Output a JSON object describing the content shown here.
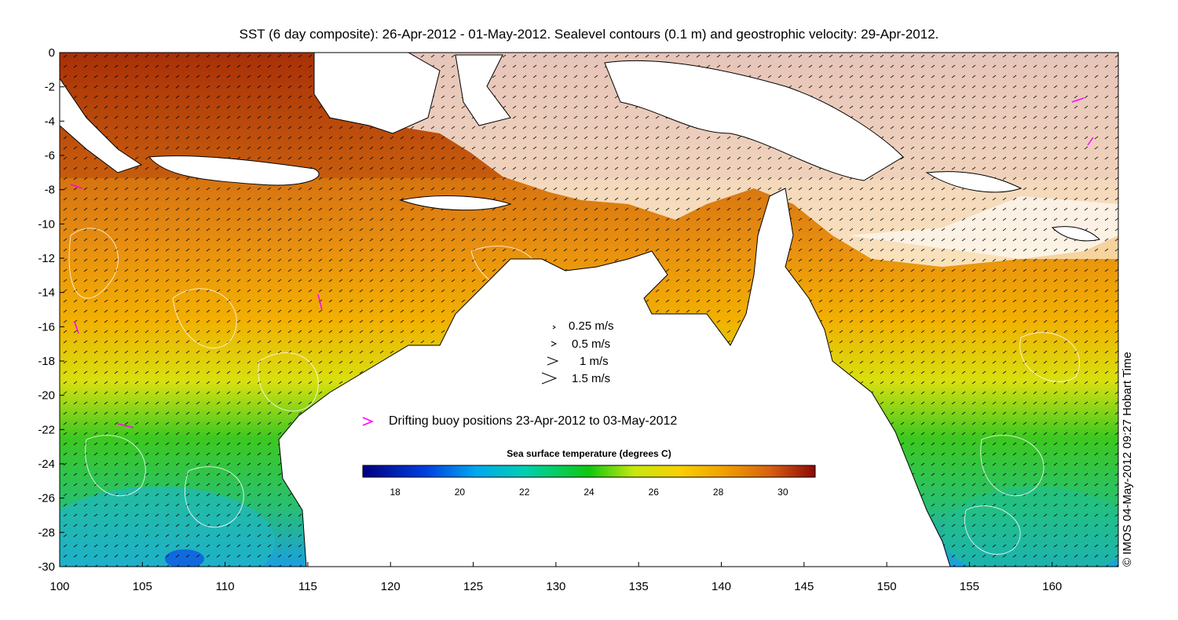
{
  "title": "SST (6 day composite): 26-Apr-2012 - 01-May-2012. Sealevel contours (0.1 m) and geostrophic velocity: 29-Apr-2012.",
  "credit": "© IMOS 04-May-2012 09:27 Hobart Time",
  "axes": {
    "x_ticks": [
      "100",
      "105",
      "110",
      "115",
      "120",
      "125",
      "130",
      "135",
      "140",
      "145",
      "150",
      "155",
      "160"
    ],
    "y_ticks": [
      "0",
      "-2",
      "-4",
      "-6",
      "-8",
      "-10",
      "-12",
      "-14",
      "-16",
      "-18",
      "-20",
      "-22",
      "-24",
      "-26",
      "-28",
      "-30"
    ],
    "lon_range": [
      100,
      164
    ],
    "lat_range": [
      -30,
      0
    ]
  },
  "velocity_legend": [
    {
      "label": "0.25 m/s",
      "speed": 0.25
    },
    {
      "label": "0.5 m/s",
      "speed": 0.5
    },
    {
      "label": "1 m/s",
      "speed": 1
    },
    {
      "label": "1.5 m/s",
      "speed": 1.5
    }
  ],
  "buoy_legend": {
    "label": "Drifting buoy positions 23-Apr-2012 to 03-May-2012",
    "color": "#ff00ff"
  },
  "colorbar": {
    "title": "Sea surface temperature (degrees C)",
    "range": [
      17,
      31
    ],
    "ticks": [
      "18",
      "20",
      "22",
      "24",
      "26",
      "28",
      "30"
    ]
  },
  "colors": {
    "land": "#ffffff",
    "cold": "#000080",
    "warm": "#8b0000",
    "contour": "#ffffff",
    "coastline": "#000000"
  }
}
